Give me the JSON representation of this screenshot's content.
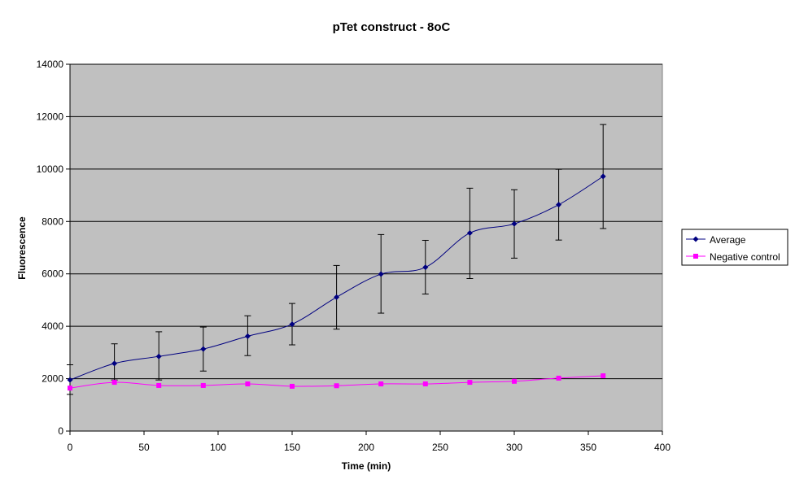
{
  "chart_data": {
    "type": "line",
    "title": "pTet construct - 8oC",
    "xlabel": "Time (min)",
    "ylabel": "Fluorescence",
    "xlim": [
      0,
      400
    ],
    "ylim": [
      0,
      14000
    ],
    "xticks": [
      0,
      50,
      100,
      150,
      200,
      250,
      300,
      350,
      400
    ],
    "yticks": [
      0,
      2000,
      4000,
      6000,
      8000,
      10000,
      12000,
      14000
    ],
    "grid": "horizontal major gridlines",
    "plot_background": "#c0c0c0",
    "legend_position": "right",
    "series": [
      {
        "name": "Average",
        "color": "#000080",
        "marker": "diamond",
        "x": [
          0,
          30,
          60,
          90,
          120,
          150,
          180,
          210,
          240,
          270,
          300,
          330,
          360
        ],
        "y": [
          1950,
          2580,
          2850,
          3130,
          3620,
          4080,
          5110,
          5990,
          6250,
          7560,
          7910,
          8640,
          9720
        ],
        "error_low": [
          1400,
          1950,
          1950,
          2290,
          2880,
          3290,
          3890,
          4500,
          5230,
          5820,
          6600,
          7290,
          7730
        ],
        "error_high": [
          2530,
          3330,
          3790,
          3970,
          4400,
          4870,
          6320,
          7500,
          7280,
          9270,
          9210,
          9990,
          11700
        ]
      },
      {
        "name": "Negative control",
        "color": "#ff00ff",
        "marker": "square",
        "x": [
          0,
          30,
          60,
          90,
          120,
          150,
          180,
          210,
          240,
          270,
          300,
          330,
          360
        ],
        "y": [
          1640,
          1860,
          1740,
          1740,
          1800,
          1710,
          1730,
          1800,
          1800,
          1860,
          1900,
          2020,
          2110
        ]
      }
    ]
  }
}
